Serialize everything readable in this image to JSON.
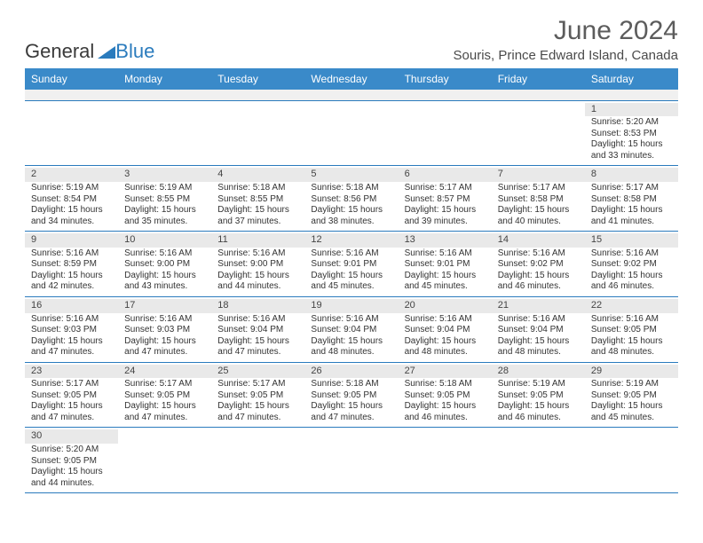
{
  "logo": {
    "text_dark": "General",
    "text_blue": "Blue",
    "triangle_color": "#2a7bbd"
  },
  "title": "June 2024",
  "subtitle": "Souris, Prince Edward Island, Canada",
  "colors": {
    "header_bg": "#3a8ac9",
    "header_text": "#ffffff",
    "row_separator": "#2a7bbd",
    "daynum_bg": "#e9e9e9",
    "blank_bg": "#f0f0f0",
    "body_text": "#333333",
    "title_text": "#5c5c5c"
  },
  "fonts": {
    "title_size": 30,
    "subtitle_size": 15,
    "header_size": 12,
    "cell_size": 10,
    "daynum_size": 11
  },
  "day_headers": [
    "Sunday",
    "Monday",
    "Tuesday",
    "Wednesday",
    "Thursday",
    "Friday",
    "Saturday"
  ],
  "weeks": [
    [
      null,
      null,
      null,
      null,
      null,
      null,
      {
        "n": "1",
        "sr": "Sunrise: 5:20 AM",
        "ss": "Sunset: 8:53 PM",
        "d1": "Daylight: 15 hours",
        "d2": "and 33 minutes."
      }
    ],
    [
      {
        "n": "2",
        "sr": "Sunrise: 5:19 AM",
        "ss": "Sunset: 8:54 PM",
        "d1": "Daylight: 15 hours",
        "d2": "and 34 minutes."
      },
      {
        "n": "3",
        "sr": "Sunrise: 5:19 AM",
        "ss": "Sunset: 8:55 PM",
        "d1": "Daylight: 15 hours",
        "d2": "and 35 minutes."
      },
      {
        "n": "4",
        "sr": "Sunrise: 5:18 AM",
        "ss": "Sunset: 8:55 PM",
        "d1": "Daylight: 15 hours",
        "d2": "and 37 minutes."
      },
      {
        "n": "5",
        "sr": "Sunrise: 5:18 AM",
        "ss": "Sunset: 8:56 PM",
        "d1": "Daylight: 15 hours",
        "d2": "and 38 minutes."
      },
      {
        "n": "6",
        "sr": "Sunrise: 5:17 AM",
        "ss": "Sunset: 8:57 PM",
        "d1": "Daylight: 15 hours",
        "d2": "and 39 minutes."
      },
      {
        "n": "7",
        "sr": "Sunrise: 5:17 AM",
        "ss": "Sunset: 8:58 PM",
        "d1": "Daylight: 15 hours",
        "d2": "and 40 minutes."
      },
      {
        "n": "8",
        "sr": "Sunrise: 5:17 AM",
        "ss": "Sunset: 8:58 PM",
        "d1": "Daylight: 15 hours",
        "d2": "and 41 minutes."
      }
    ],
    [
      {
        "n": "9",
        "sr": "Sunrise: 5:16 AM",
        "ss": "Sunset: 8:59 PM",
        "d1": "Daylight: 15 hours",
        "d2": "and 42 minutes."
      },
      {
        "n": "10",
        "sr": "Sunrise: 5:16 AM",
        "ss": "Sunset: 9:00 PM",
        "d1": "Daylight: 15 hours",
        "d2": "and 43 minutes."
      },
      {
        "n": "11",
        "sr": "Sunrise: 5:16 AM",
        "ss": "Sunset: 9:00 PM",
        "d1": "Daylight: 15 hours",
        "d2": "and 44 minutes."
      },
      {
        "n": "12",
        "sr": "Sunrise: 5:16 AM",
        "ss": "Sunset: 9:01 PM",
        "d1": "Daylight: 15 hours",
        "d2": "and 45 minutes."
      },
      {
        "n": "13",
        "sr": "Sunrise: 5:16 AM",
        "ss": "Sunset: 9:01 PM",
        "d1": "Daylight: 15 hours",
        "d2": "and 45 minutes."
      },
      {
        "n": "14",
        "sr": "Sunrise: 5:16 AM",
        "ss": "Sunset: 9:02 PM",
        "d1": "Daylight: 15 hours",
        "d2": "and 46 minutes."
      },
      {
        "n": "15",
        "sr": "Sunrise: 5:16 AM",
        "ss": "Sunset: 9:02 PM",
        "d1": "Daylight: 15 hours",
        "d2": "and 46 minutes."
      }
    ],
    [
      {
        "n": "16",
        "sr": "Sunrise: 5:16 AM",
        "ss": "Sunset: 9:03 PM",
        "d1": "Daylight: 15 hours",
        "d2": "and 47 minutes."
      },
      {
        "n": "17",
        "sr": "Sunrise: 5:16 AM",
        "ss": "Sunset: 9:03 PM",
        "d1": "Daylight: 15 hours",
        "d2": "and 47 minutes."
      },
      {
        "n": "18",
        "sr": "Sunrise: 5:16 AM",
        "ss": "Sunset: 9:04 PM",
        "d1": "Daylight: 15 hours",
        "d2": "and 47 minutes."
      },
      {
        "n": "19",
        "sr": "Sunrise: 5:16 AM",
        "ss": "Sunset: 9:04 PM",
        "d1": "Daylight: 15 hours",
        "d2": "and 48 minutes."
      },
      {
        "n": "20",
        "sr": "Sunrise: 5:16 AM",
        "ss": "Sunset: 9:04 PM",
        "d1": "Daylight: 15 hours",
        "d2": "and 48 minutes."
      },
      {
        "n": "21",
        "sr": "Sunrise: 5:16 AM",
        "ss": "Sunset: 9:04 PM",
        "d1": "Daylight: 15 hours",
        "d2": "and 48 minutes."
      },
      {
        "n": "22",
        "sr": "Sunrise: 5:16 AM",
        "ss": "Sunset: 9:05 PM",
        "d1": "Daylight: 15 hours",
        "d2": "and 48 minutes."
      }
    ],
    [
      {
        "n": "23",
        "sr": "Sunrise: 5:17 AM",
        "ss": "Sunset: 9:05 PM",
        "d1": "Daylight: 15 hours",
        "d2": "and 47 minutes."
      },
      {
        "n": "24",
        "sr": "Sunrise: 5:17 AM",
        "ss": "Sunset: 9:05 PM",
        "d1": "Daylight: 15 hours",
        "d2": "and 47 minutes."
      },
      {
        "n": "25",
        "sr": "Sunrise: 5:17 AM",
        "ss": "Sunset: 9:05 PM",
        "d1": "Daylight: 15 hours",
        "d2": "and 47 minutes."
      },
      {
        "n": "26",
        "sr": "Sunrise: 5:18 AM",
        "ss": "Sunset: 9:05 PM",
        "d1": "Daylight: 15 hours",
        "d2": "and 47 minutes."
      },
      {
        "n": "27",
        "sr": "Sunrise: 5:18 AM",
        "ss": "Sunset: 9:05 PM",
        "d1": "Daylight: 15 hours",
        "d2": "and 46 minutes."
      },
      {
        "n": "28",
        "sr": "Sunrise: 5:19 AM",
        "ss": "Sunset: 9:05 PM",
        "d1": "Daylight: 15 hours",
        "d2": "and 46 minutes."
      },
      {
        "n": "29",
        "sr": "Sunrise: 5:19 AM",
        "ss": "Sunset: 9:05 PM",
        "d1": "Daylight: 15 hours",
        "d2": "and 45 minutes."
      }
    ],
    [
      {
        "n": "30",
        "sr": "Sunrise: 5:20 AM",
        "ss": "Sunset: 9:05 PM",
        "d1": "Daylight: 15 hours",
        "d2": "and 44 minutes."
      },
      null,
      null,
      null,
      null,
      null,
      null
    ]
  ]
}
